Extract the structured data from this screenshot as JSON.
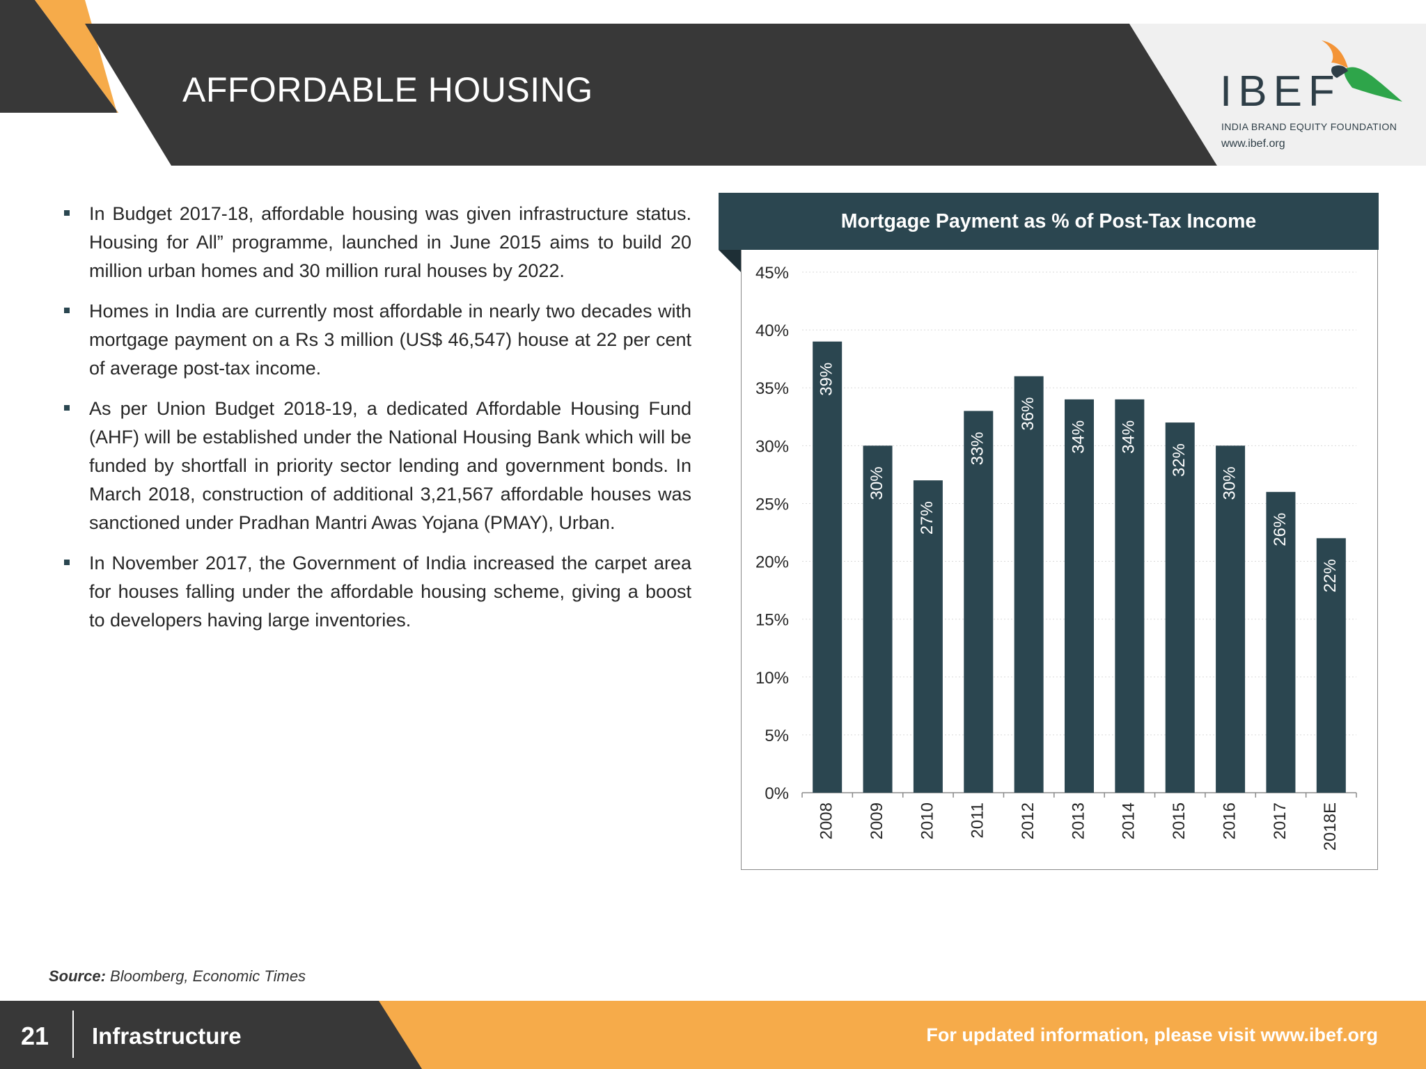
{
  "header": {
    "title": "AFFORDABLE HOUSING",
    "logo": {
      "wordmark": "IBEF",
      "tagline": "INDIA BRAND EQUITY FOUNDATION",
      "url": "www.ibef.org"
    }
  },
  "bullets": [
    "In Budget 2017-18, affordable housing was given infrastructure status. Housing for All” programme, launched in June 2015 aims to build 20 million urban homes and 30 million rural houses by 2022.",
    "Homes in India are currently most affordable in nearly two decades with mortgage payment on a Rs 3 million (US$ 46,547) house at 22 per cent of average post-tax income.",
    "As per Union Budget 2018-19, a dedicated Affordable Housing Fund (AHF) will be established under the National Housing Bank which will be funded by shortfall in priority sector lending and government bonds. In March 2018, construction of additional 3,21,567 affordable houses was sanctioned under Pradhan Mantri Awas Yojana (PMAY), Urban.",
    "In November 2017, the Government of India increased the carpet area for houses falling under the affordable housing scheme, giving a boost to developers having large inventories."
  ],
  "chart_data": {
    "type": "bar",
    "title": "Mortgage Payment as % of Post-Tax Income",
    "categories": [
      "2008",
      "2009",
      "2010",
      "2011",
      "2012",
      "2013",
      "2014",
      "2015",
      "2016",
      "2017",
      "2018E"
    ],
    "values": [
      39,
      30,
      27,
      33,
      36,
      34,
      34,
      32,
      30,
      26,
      22
    ],
    "data_labels": [
      "39%",
      "30%",
      "27%",
      "33%",
      "36%",
      "34%",
      "34%",
      "32%",
      "30%",
      "26%",
      "22%"
    ],
    "y_ticks": [
      "0%",
      "5%",
      "10%",
      "15%",
      "20%",
      "25%",
      "30%",
      "35%",
      "40%",
      "45%"
    ],
    "ylim": [
      0,
      45
    ],
    "xlabel": "",
    "ylabel": "",
    "grid": true,
    "bar_color": "#2b4650"
  },
  "source": {
    "label": "Source:",
    "text": " Bloomberg, Economic Times"
  },
  "footer": {
    "page_number": "21",
    "section": "Infrastructure",
    "link_text": "For updated information, please visit www.ibef.org"
  },
  "colors": {
    "dark": "#383838",
    "accent": "#f6ab4a",
    "teal": "#2b4650"
  }
}
